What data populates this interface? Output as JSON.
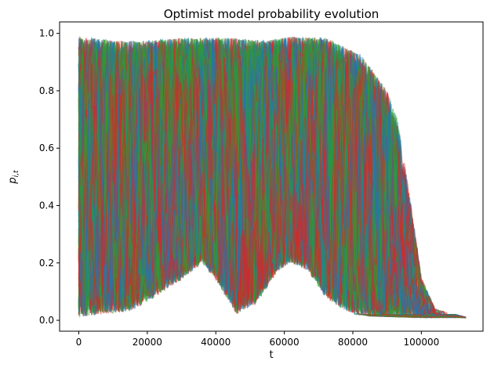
{
  "chart_data": {
    "type": "line",
    "title": "Optimist model probability evolution",
    "xlabel": "t",
    "ylabel": "p_{i,t}",
    "xlim": [
      -5600,
      118000
    ],
    "ylim": [
      -0.038,
      1.04
    ],
    "xticks": [
      0,
      20000,
      40000,
      60000,
      80000,
      100000
    ],
    "xtick_labels": [
      "0",
      "20000",
      "40000",
      "60000",
      "80000",
      "100000"
    ],
    "yticks": [
      0.0,
      0.2,
      0.4,
      0.6,
      0.8,
      1.0
    ],
    "ytick_labels": [
      "0.0",
      "0.2",
      "0.4",
      "0.6",
      "0.8",
      "1.0"
    ],
    "grid": false,
    "legend": "none",
    "series_colors": [
      "#1f77b4",
      "#2ca02c",
      "#d62728"
    ],
    "series_alpha": 0.5,
    "n_trajectories_approx": 150,
    "x_end": 113000,
    "band_upper": [
      {
        "x": 0,
        "y": 0.99
      },
      {
        "x": 10000,
        "y": 0.975
      },
      {
        "x": 20000,
        "y": 0.975
      },
      {
        "x": 30000,
        "y": 0.985
      },
      {
        "x": 45000,
        "y": 0.985
      },
      {
        "x": 55000,
        "y": 0.975
      },
      {
        "x": 62000,
        "y": 0.99
      },
      {
        "x": 72000,
        "y": 0.985
      },
      {
        "x": 78000,
        "y": 0.95
      },
      {
        "x": 82000,
        "y": 0.93
      },
      {
        "x": 86000,
        "y": 0.87
      },
      {
        "x": 90000,
        "y": 0.8
      },
      {
        "x": 93000,
        "y": 0.7
      },
      {
        "x": 95000,
        "y": 0.55
      },
      {
        "x": 97000,
        "y": 0.4
      },
      {
        "x": 100000,
        "y": 0.15
      },
      {
        "x": 104000,
        "y": 0.04
      },
      {
        "x": 113000,
        "y": 0.01
      }
    ],
    "band_lower": [
      {
        "x": 0,
        "y": 0.01
      },
      {
        "x": 5000,
        "y": 0.02
      },
      {
        "x": 15000,
        "y": 0.03
      },
      {
        "x": 22000,
        "y": 0.08
      },
      {
        "x": 30000,
        "y": 0.14
      },
      {
        "x": 36000,
        "y": 0.2
      },
      {
        "x": 40000,
        "y": 0.14
      },
      {
        "x": 46000,
        "y": 0.02
      },
      {
        "x": 52000,
        "y": 0.06
      },
      {
        "x": 58000,
        "y": 0.17
      },
      {
        "x": 62000,
        "y": 0.2
      },
      {
        "x": 67000,
        "y": 0.17
      },
      {
        "x": 72000,
        "y": 0.08
      },
      {
        "x": 78000,
        "y": 0.03
      },
      {
        "x": 85000,
        "y": 0.015
      },
      {
        "x": 100000,
        "y": 0.01
      },
      {
        "x": 113000,
        "y": 0.01
      }
    ]
  }
}
